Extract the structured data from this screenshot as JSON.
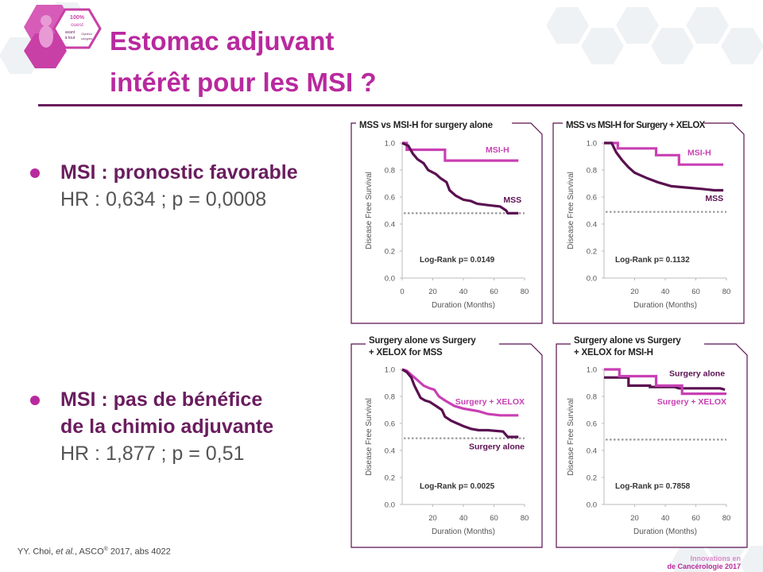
{
  "logo": {
    "line1": "100%",
    "line2": "ouest",
    "line3": "avant",
    "line4": "à tout",
    "line5": "Gynéco",
    "line6": "congrès"
  },
  "title": {
    "line1": "Estomac adjuvant",
    "line2": "intérêt pour les MSI ?"
  },
  "bullets": [
    {
      "heading": "MSI : pronostic favorable",
      "detail": "HR : 0,634 ; p = 0,0008"
    },
    {
      "heading_line1": "MSI : pas de bénéfice",
      "heading_line2": "de la chimio adjuvante",
      "detail": "HR : 1,877 ; p = 0,51"
    }
  ],
  "citation": {
    "authors": "YY. Choi, ",
    "etal": "et al.",
    "journal": ", ASCO",
    "reg": "®",
    "rest": " 2017, abs 4022"
  },
  "footer": {
    "line1": "Innovations en",
    "line2": "de Cancérologie 2017"
  },
  "colors": {
    "magenta": "#c840b4",
    "purple": "#5a1050",
    "reference": "#999999",
    "title": "#b8299e"
  },
  "chart_data": [
    {
      "type": "line",
      "title": "MSS vs MSI-H for surgery alone",
      "xlabel": "Duration (Months)",
      "ylabel": "Disease Free Survival",
      "xlim": [
        0,
        80
      ],
      "ylim": [
        0,
        1.0
      ],
      "xticks": [
        "0",
        "20",
        "40",
        "60",
        "80"
      ],
      "yticks": [
        "0.0",
        "0.2",
        "0.4",
        "0.6",
        "0.8",
        "1.0"
      ],
      "annotation": "Log-Rank p= 0.0149",
      "reference_y": 0.48,
      "series": [
        {
          "name": "MSI-H",
          "color": "magenta",
          "label_x": 70,
          "label_y": 0.93,
          "points": [
            [
              0,
              1.0
            ],
            [
              3,
              1.0
            ],
            [
              3,
              0.95
            ],
            [
              28,
              0.95
            ],
            [
              28,
              0.87
            ],
            [
              76,
              0.87
            ]
          ]
        },
        {
          "name": "MSS",
          "color": "purple",
          "label_x": 78,
          "label_y": 0.56,
          "points": [
            [
              0,
              1.0
            ],
            [
              4,
              0.98
            ],
            [
              7,
              0.92
            ],
            [
              10,
              0.88
            ],
            [
              14,
              0.85
            ],
            [
              17,
              0.8
            ],
            [
              22,
              0.77
            ],
            [
              25,
              0.74
            ],
            [
              29,
              0.71
            ],
            [
              31,
              0.65
            ],
            [
              35,
              0.61
            ],
            [
              40,
              0.58
            ],
            [
              45,
              0.57
            ],
            [
              49,
              0.55
            ],
            [
              56,
              0.54
            ],
            [
              64,
              0.53
            ],
            [
              68,
              0.5
            ],
            [
              69,
              0.48
            ],
            [
              76,
              0.48
            ]
          ]
        }
      ]
    },
    {
      "type": "line",
      "title": "MSS vs MSI-H for Surgery + XELOX",
      "xlabel": "Duration (Months)",
      "ylabel": "Disease Free Survival",
      "xlim": [
        0,
        80
      ],
      "ylim": [
        0,
        1.0
      ],
      "xticks": [
        "20",
        "40",
        "60",
        "80"
      ],
      "yticks": [
        "0.0",
        "0.2",
        "0.4",
        "0.6",
        "0.8",
        "1.0"
      ],
      "annotation": "Log-Rank p= 0.1132",
      "reference_y": 0.49,
      "series": [
        {
          "name": "MSI-H",
          "color": "magenta",
          "label_x": 70,
          "label_y": 0.91,
          "points": [
            [
              0,
              1.0
            ],
            [
              9,
              1.0
            ],
            [
              9,
              0.96
            ],
            [
              34,
              0.96
            ],
            [
              34,
              0.91
            ],
            [
              49,
              0.91
            ],
            [
              49,
              0.84
            ],
            [
              78,
              0.84
            ]
          ]
        },
        {
          "name": "MSS",
          "color": "purple",
          "label_x": 78,
          "label_y": 0.57,
          "points": [
            [
              0,
              1.0
            ],
            [
              5,
              1.0
            ],
            [
              8,
              0.93
            ],
            [
              12,
              0.87
            ],
            [
              16,
              0.82
            ],
            [
              20,
              0.78
            ],
            [
              24,
              0.76
            ],
            [
              28,
              0.74
            ],
            [
              35,
              0.71
            ],
            [
              44,
              0.68
            ],
            [
              54,
              0.67
            ],
            [
              64,
              0.66
            ],
            [
              72,
              0.65
            ],
            [
              78,
              0.65
            ]
          ]
        }
      ]
    },
    {
      "type": "line",
      "title": "Surgery alone vs Surgery + XELOX for MSS",
      "title_line1": "Surgery alone vs Surgery",
      "title_line2": "+ XELOX for MSS",
      "xlabel": "Duration (Months)",
      "ylabel": "Disease Free Survival",
      "xlim": [
        0,
        80
      ],
      "ylim": [
        0,
        1.0
      ],
      "xticks": [
        "20",
        "40",
        "60",
        "80"
      ],
      "yticks": [
        "0.0",
        "0.2",
        "0.4",
        "0.6",
        "0.8",
        "1.0"
      ],
      "annotation": "Log-Rank p= 0.0025",
      "reference_y": 0.49,
      "series": [
        {
          "name": "Surgery + XELOX",
          "color": "magenta",
          "label_x": 80,
          "label_y": 0.74,
          "points": [
            [
              0,
              1.0
            ],
            [
              3,
              0.99
            ],
            [
              6,
              0.96
            ],
            [
              10,
              0.92
            ],
            [
              14,
              0.88
            ],
            [
              18,
              0.86
            ],
            [
              21,
              0.85
            ],
            [
              24,
              0.8
            ],
            [
              28,
              0.77
            ],
            [
              34,
              0.73
            ],
            [
              40,
              0.71
            ],
            [
              45,
              0.7
            ],
            [
              50,
              0.69
            ],
            [
              56,
              0.67
            ],
            [
              64,
              0.66
            ],
            [
              76,
              0.66
            ]
          ]
        },
        {
          "name": "Surgery alone",
          "color": "purple",
          "label_x": 80,
          "label_y": 0.41,
          "points": [
            [
              0,
              1.0
            ],
            [
              3,
              0.98
            ],
            [
              6,
              0.94
            ],
            [
              8,
              0.88
            ],
            [
              12,
              0.79
            ],
            [
              15,
              0.77
            ],
            [
              18,
              0.76
            ],
            [
              22,
              0.73
            ],
            [
              26,
              0.7
            ],
            [
              28,
              0.65
            ],
            [
              32,
              0.62
            ],
            [
              36,
              0.6
            ],
            [
              40,
              0.58
            ],
            [
              45,
              0.56
            ],
            [
              50,
              0.55
            ],
            [
              56,
              0.55
            ],
            [
              66,
              0.54
            ],
            [
              69,
              0.5
            ],
            [
              76,
              0.5
            ]
          ]
        }
      ]
    },
    {
      "type": "line",
      "title": "Surgery alone vs Surgery + XELOX for MSI-H",
      "title_line1": "Surgery alone vs Surgery",
      "title_line2": "+ XELOX for MSI-H",
      "xlabel": "Duration (Months)",
      "ylabel": "Disease Free Survival",
      "xlim": [
        0,
        80
      ],
      "ylim": [
        0,
        1.0
      ],
      "xticks": [
        "20",
        "40",
        "60",
        "80"
      ],
      "yticks": [
        "0.0",
        "0.2",
        "0.4",
        "0.6",
        "0.8",
        "1.0"
      ],
      "annotation": "Log-Rank p= 0.7858",
      "reference_y": 0.48,
      "series": [
        {
          "name": "Surgery alone",
          "color": "purple",
          "label_x": 79,
          "label_y": 0.95,
          "points": [
            [
              0,
              0.94
            ],
            [
              16,
              0.94
            ],
            [
              16,
              0.88
            ],
            [
              30,
              0.88
            ],
            [
              30,
              0.87
            ],
            [
              46,
              0.87
            ],
            [
              49,
              0.86
            ],
            [
              76,
              0.86
            ],
            [
              79,
              0.85
            ]
          ]
        },
        {
          "name": "Surgery + XELOX",
          "color": "magenta",
          "label_x": 80,
          "label_y": 0.74,
          "points": [
            [
              0,
              1.0
            ],
            [
              10,
              1.0
            ],
            [
              10,
              0.95
            ],
            [
              34,
              0.95
            ],
            [
              34,
              0.88
            ],
            [
              51,
              0.88
            ],
            [
              51,
              0.82
            ],
            [
              80,
              0.82
            ]
          ]
        }
      ]
    }
  ]
}
